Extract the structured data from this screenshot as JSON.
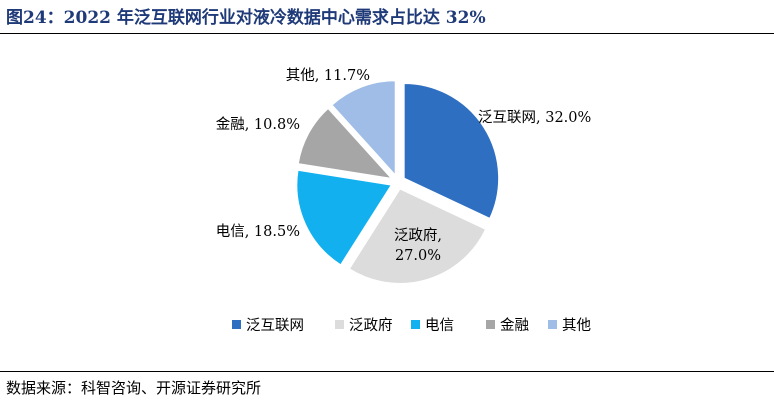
{
  "header": {
    "title": "图24：2022 年泛互联网行业对液冷数据中心需求占比达 32%"
  },
  "footer": {
    "source": "数据来源：科智咨询、开源证券研究所"
  },
  "chart_data": {
    "type": "pie",
    "title": "",
    "legend_position": "bottom",
    "slices": [
      {
        "name": "泛互联网",
        "value": 32.0,
        "label_line1": "泛互联网, 32.0%",
        "label_line2": "",
        "color": "#2f6fc1"
      },
      {
        "name": "泛政府",
        "value": 27.0,
        "label_line1": "泛政府,",
        "label_line2": "27.0%",
        "color": "#dcdcdc"
      },
      {
        "name": "电信",
        "value": 18.5,
        "label_line1": "电信, 18.5%",
        "label_line2": "",
        "color": "#12b0ee"
      },
      {
        "name": "金融",
        "value": 10.8,
        "label_line1": "金融, 10.8%",
        "label_line2": "",
        "color": "#a6a6a6"
      },
      {
        "name": "其他",
        "value": 11.7,
        "label_line1": "其他, 11.7%",
        "label_line2": "",
        "color": "#9fbde6"
      }
    ]
  }
}
